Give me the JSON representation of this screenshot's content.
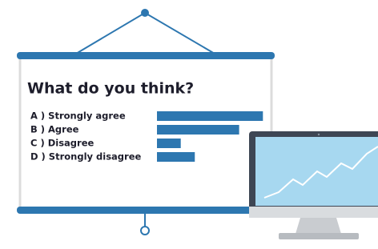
{
  "chart_data": {
    "type": "bar",
    "orientation": "horizontal",
    "title": "What do you think?",
    "categories": [
      "A ) Strongly agree",
      "B ) Agree",
      "C ) Disagree",
      "D ) Strongly disagree"
    ],
    "values": [
      98,
      76,
      22,
      35
    ],
    "color": "#2d77b0",
    "xlim": [
      0,
      100
    ]
  }
}
